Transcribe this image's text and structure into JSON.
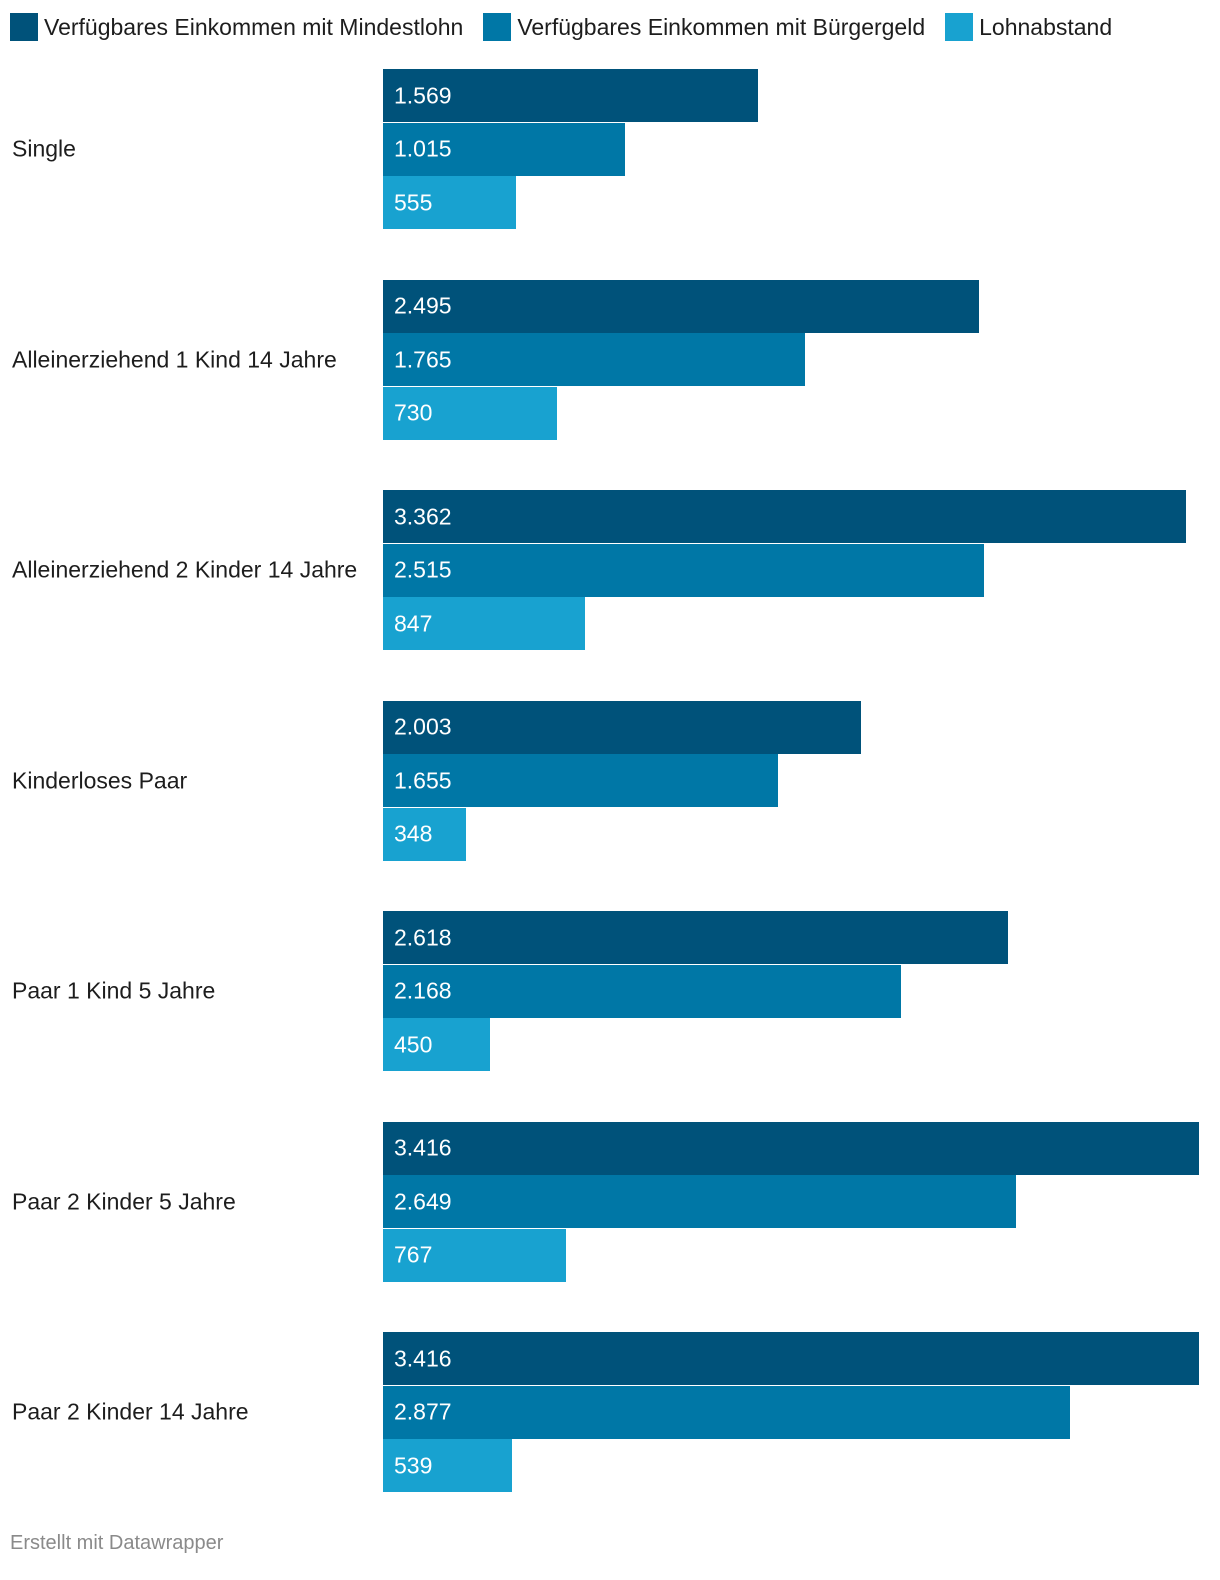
{
  "chart_data": {
    "type": "bar",
    "orientation": "horizontal",
    "title": "",
    "xlabel": "",
    "ylabel": "",
    "xlim": [
      0,
      3416
    ],
    "grid": false,
    "legend_position": "top",
    "categories": [
      "Single",
      "Alleinerziehend 1 Kind 14 Jahre",
      "Alleinerziehend 2 Kinder 14 Jahre",
      "Kinderloses Paar",
      "Paar 1 Kind 5 Jahre",
      "Paar 2 Kinder 5 Jahre",
      "Paar 2 Kinder 14 Jahre"
    ],
    "series": [
      {
        "name": "Verfügbares Einkommen mit Mindestlohn",
        "color": "#00527a",
        "values": [
          1569,
          2495,
          3362,
          2003,
          2618,
          3416,
          3416
        ],
        "labels": [
          "1.569",
          "2.495",
          "3.362",
          "2.003",
          "2.618",
          "3.416",
          "3.416"
        ]
      },
      {
        "name": "Verfügbares Einkommen mit Bürgergeld",
        "color": "#0077a6",
        "values": [
          1015,
          1765,
          2515,
          1655,
          2168,
          2649,
          2877
        ],
        "labels": [
          "1.015",
          "1.765",
          "2.515",
          "1.655",
          "2.168",
          "2.649",
          "2.877"
        ]
      },
      {
        "name": "Lohnabstand",
        "color": "#18a2d0",
        "values": [
          555,
          730,
          847,
          348,
          450,
          767,
          539
        ],
        "labels": [
          "555",
          "730",
          "847",
          "348",
          "450",
          "767",
          "539"
        ]
      }
    ]
  },
  "footer": {
    "credit": "Erstellt mit Datawrapper"
  }
}
